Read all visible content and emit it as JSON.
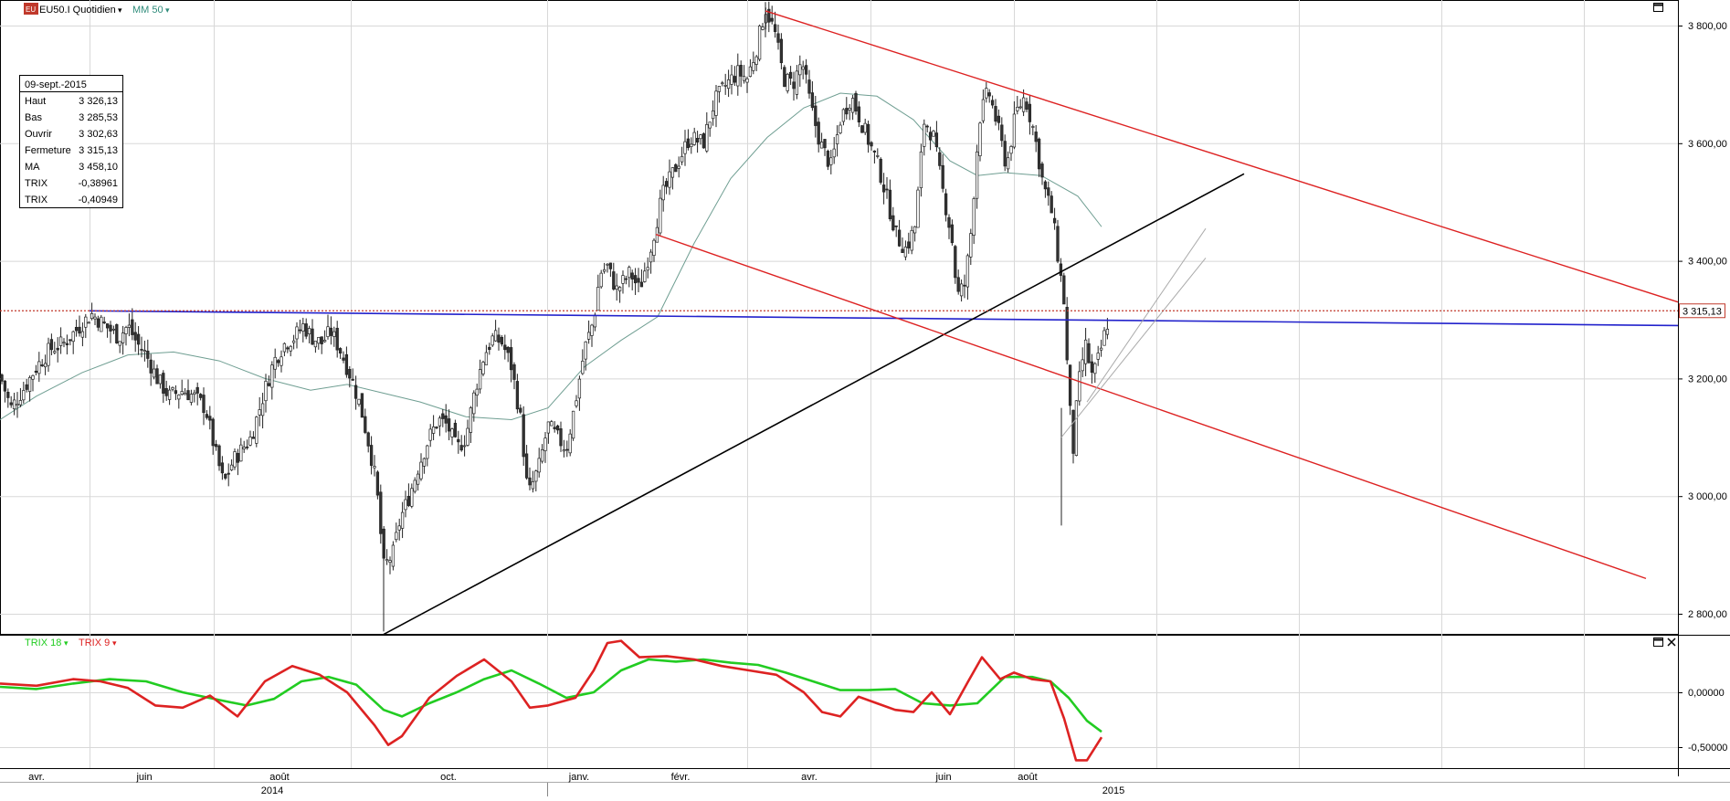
{
  "header": {
    "symbol_label": "EU50.I Quotidien",
    "indicator_label": "MM 50",
    "sub_indicator_1": "TRIX 18",
    "sub_indicator_2": "TRIX 9"
  },
  "info_box": {
    "date": "09-sept.-2015",
    "rows": [
      {
        "label": "Haut",
        "value": "3 326,13",
        "color": "#000000"
      },
      {
        "label": "Bas",
        "value": "3 285,53",
        "color": "#000000"
      },
      {
        "label": "Ouvrir",
        "value": "3 302,63",
        "color": "#000000"
      },
      {
        "label": "Fermeture",
        "value": "3 315,13",
        "color": "#000000"
      },
      {
        "label": "MA",
        "value": "3 458,10",
        "color": "#2e8b7a"
      },
      {
        "label": "TRIX",
        "value": "-0,38961",
        "color": "#22cc22"
      },
      {
        "label": "TRIX",
        "value": "-0,40949",
        "color": "#dd2222"
      }
    ]
  },
  "chart_data": [
    {
      "type": "candlestick",
      "yticks": [
        2800,
        3000,
        3200,
        3400,
        3600,
        3800
      ],
      "ytick_labels": [
        "2 800,00",
        "3 000,00",
        "3 200,00",
        "3 400,00",
        "3 600,00",
        "3 800,00"
      ],
      "ylim": [
        2765,
        3845
      ],
      "last_price": 3315.13,
      "last_price_label": "3 315,13",
      "x_month_labels": [
        "avr.",
        "juin",
        "août",
        "oct.",
        "janv.",
        "févr.",
        "avr.",
        "juin",
        "août"
      ],
      "x_year_labels": [
        "2014",
        "2015"
      ],
      "moving_average_period": 50,
      "colors": {
        "up": "#ffffff",
        "down": "#333333",
        "ma": "#6f9e92",
        "support": "#2222cc",
        "channel": "#dd2222",
        "trend": "#000000"
      }
    },
    {
      "type": "line",
      "yticks": [
        0,
        -0.5
      ],
      "ytick_labels": [
        "0,00000",
        "-0,50000"
      ],
      "ylim": [
        -0.72,
        0.5
      ],
      "series": [
        {
          "name": "TRIX 18",
          "color": "#22cc22",
          "last": -0.38961
        },
        {
          "name": "TRIX 9",
          "color": "#dd2222",
          "last": -0.40949
        }
      ]
    }
  ]
}
